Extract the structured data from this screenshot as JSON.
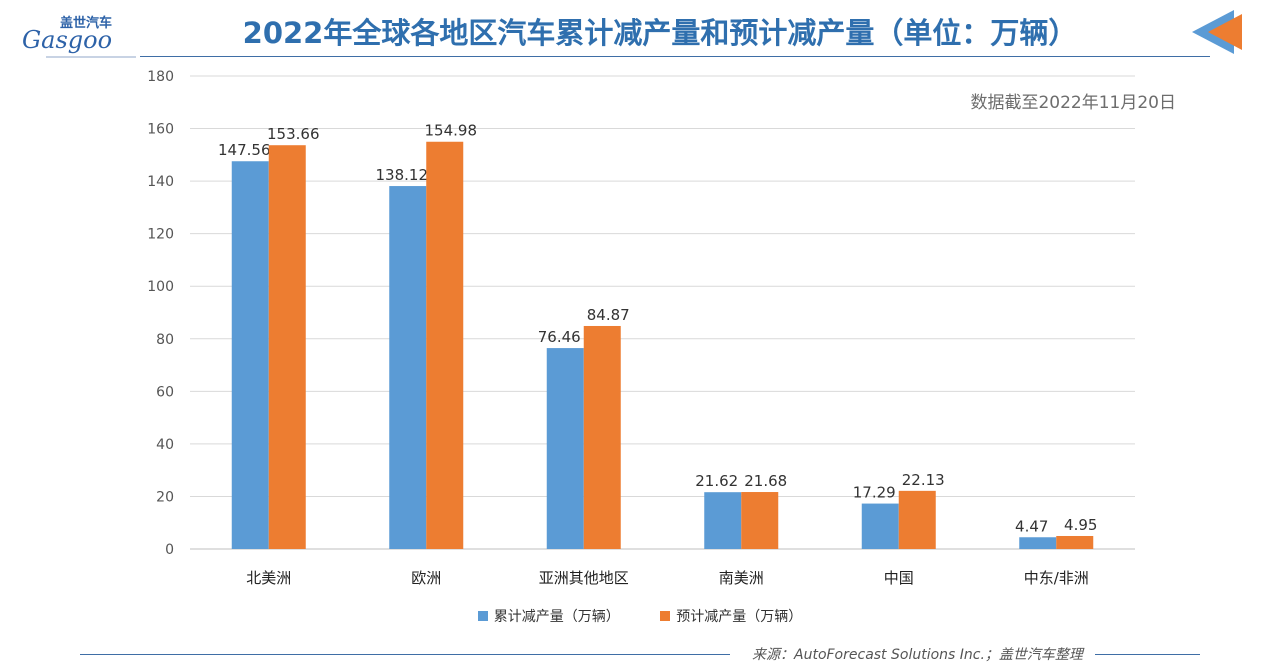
{
  "header": {
    "title": "2022年全球各地区汽车累计减产量和预计减产量（单位：万辆）",
    "logo_cn": "盖世汽车",
    "logo_en": "Gasgoo"
  },
  "note": "数据截至2022年11月20日",
  "source": "来源：AutoForecast Solutions Inc.；盖世汽车整理",
  "colors": {
    "cumulative": "#5b9bd5",
    "forecast": "#ed7d31",
    "grid": "#d9d9d9",
    "title": "#2f6fae"
  },
  "chart_data": {
    "type": "bar",
    "title": "2022年全球各地区汽车累计减产量和预计减产量（单位：万辆）",
    "categories": [
      "北美洲",
      "欧洲",
      "亚洲其他地区",
      "南美洲",
      "中国",
      "中东/非洲"
    ],
    "series": [
      {
        "name": "累计减产量（万辆）",
        "values": [
          147.56,
          138.12,
          76.46,
          21.62,
          17.29,
          4.47
        ]
      },
      {
        "name": "预计减产量（万辆）",
        "values": [
          153.66,
          154.98,
          84.87,
          21.68,
          22.13,
          4.95
        ]
      }
    ],
    "ylim": [
      0,
      180
    ],
    "yticks": [
      0,
      20,
      40,
      60,
      80,
      100,
      120,
      140,
      160,
      180
    ],
    "grid": true,
    "legend": "bottom"
  }
}
